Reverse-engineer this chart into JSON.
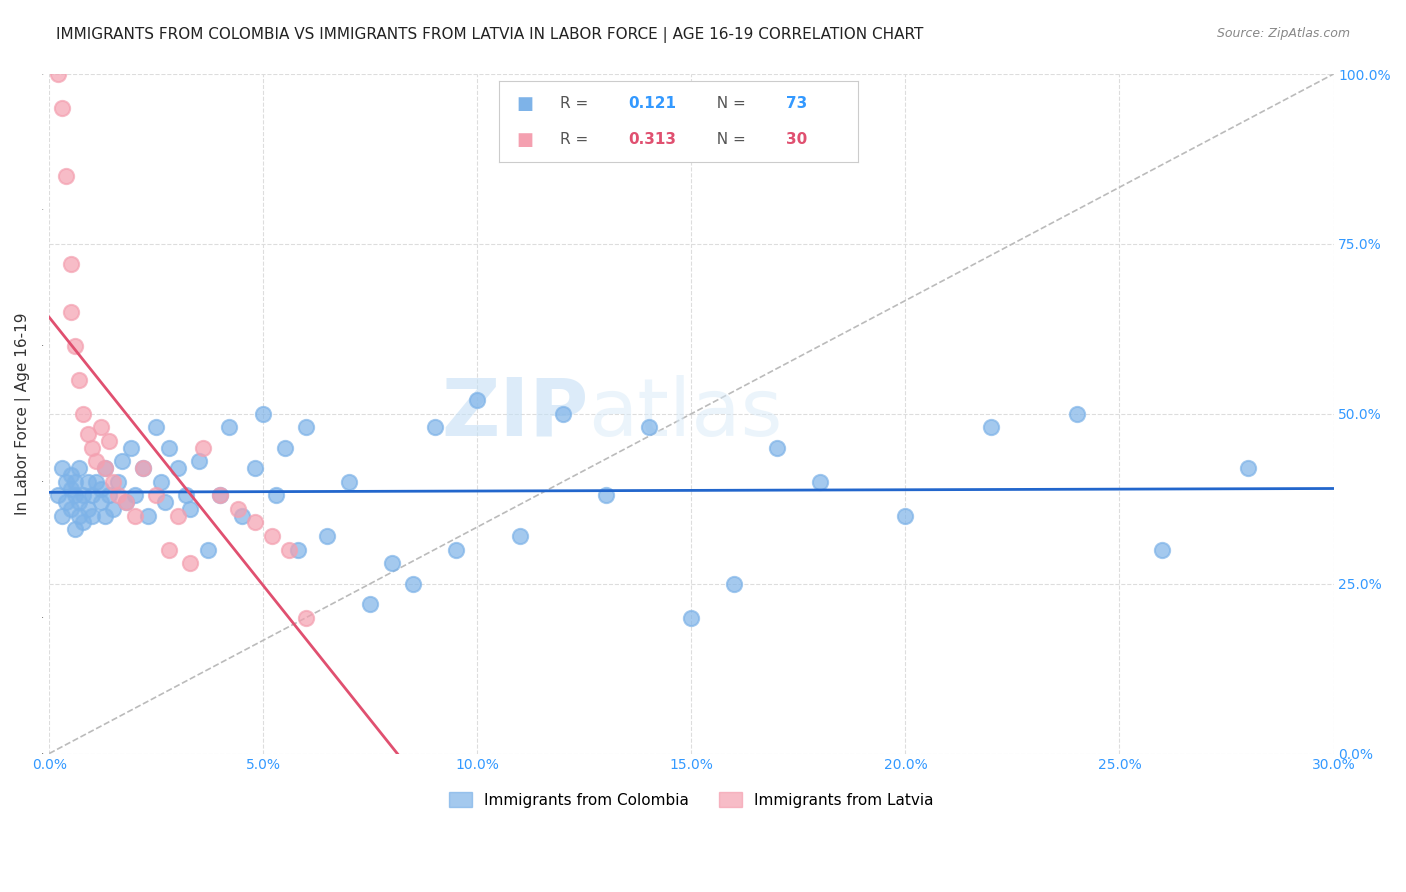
{
  "title": "IMMIGRANTS FROM COLOMBIA VS IMMIGRANTS FROM LATVIA IN LABOR FORCE | AGE 16-19 CORRELATION CHART",
  "source": "Source: ZipAtlas.com",
  "ylabel": "In Labor Force | Age 16-19",
  "xlim": [
    0.0,
    0.3
  ],
  "ylim": [
    0.0,
    1.0
  ],
  "xticks": [
    0.0,
    0.05,
    0.1,
    0.15,
    0.2,
    0.25,
    0.3
  ],
  "xticklabels": [
    "0.0%",
    "5.0%",
    "10.0%",
    "15.0%",
    "20.0%",
    "25.0%",
    "30.0%"
  ],
  "yticks_right": [
    0.0,
    0.25,
    0.5,
    0.75,
    1.0
  ],
  "yticklabels_right": [
    "0.0%",
    "25.0%",
    "50.0%",
    "75.0%",
    "100.0%"
  ],
  "colombia_color": "#7EB3E8",
  "latvia_color": "#F4A0B0",
  "colombia_line_color": "#2266CC",
  "latvia_line_color": "#E05070",
  "diag_line_color": "#BBBBBB",
  "colombia_R": 0.121,
  "colombia_N": 73,
  "latvia_R": 0.313,
  "latvia_N": 30,
  "colombia_scatter_x": [
    0.002,
    0.003,
    0.003,
    0.004,
    0.004,
    0.005,
    0.005,
    0.005,
    0.006,
    0.006,
    0.006,
    0.007,
    0.007,
    0.007,
    0.008,
    0.008,
    0.009,
    0.009,
    0.01,
    0.01,
    0.011,
    0.012,
    0.012,
    0.013,
    0.013,
    0.014,
    0.015,
    0.016,
    0.017,
    0.018,
    0.019,
    0.02,
    0.022,
    0.023,
    0.025,
    0.026,
    0.027,
    0.028,
    0.03,
    0.032,
    0.033,
    0.035,
    0.037,
    0.04,
    0.042,
    0.045,
    0.048,
    0.05,
    0.053,
    0.055,
    0.058,
    0.06,
    0.065,
    0.07,
    0.075,
    0.08,
    0.085,
    0.09,
    0.095,
    0.1,
    0.11,
    0.12,
    0.13,
    0.14,
    0.15,
    0.16,
    0.17,
    0.18,
    0.2,
    0.22,
    0.24,
    0.26,
    0.28
  ],
  "colombia_scatter_y": [
    0.38,
    0.35,
    0.42,
    0.4,
    0.37,
    0.36,
    0.39,
    0.41,
    0.33,
    0.38,
    0.4,
    0.35,
    0.37,
    0.42,
    0.34,
    0.38,
    0.36,
    0.4,
    0.35,
    0.38,
    0.4,
    0.37,
    0.39,
    0.35,
    0.42,
    0.38,
    0.36,
    0.4,
    0.43,
    0.37,
    0.45,
    0.38,
    0.42,
    0.35,
    0.48,
    0.4,
    0.37,
    0.45,
    0.42,
    0.38,
    0.36,
    0.43,
    0.3,
    0.38,
    0.48,
    0.35,
    0.42,
    0.5,
    0.38,
    0.45,
    0.3,
    0.48,
    0.32,
    0.4,
    0.22,
    0.28,
    0.25,
    0.48,
    0.3,
    0.52,
    0.32,
    0.5,
    0.38,
    0.48,
    0.2,
    0.25,
    0.45,
    0.4,
    0.35,
    0.48,
    0.5,
    0.3,
    0.42
  ],
  "latvia_scatter_x": [
    0.002,
    0.003,
    0.004,
    0.005,
    0.005,
    0.006,
    0.007,
    0.008,
    0.009,
    0.01,
    0.011,
    0.012,
    0.013,
    0.014,
    0.015,
    0.016,
    0.018,
    0.02,
    0.022,
    0.025,
    0.028,
    0.03,
    0.033,
    0.036,
    0.04,
    0.044,
    0.048,
    0.052,
    0.056,
    0.06
  ],
  "latvia_scatter_y": [
    1.0,
    0.95,
    0.85,
    0.72,
    0.65,
    0.6,
    0.55,
    0.5,
    0.47,
    0.45,
    0.43,
    0.48,
    0.42,
    0.46,
    0.4,
    0.38,
    0.37,
    0.35,
    0.42,
    0.38,
    0.3,
    0.35,
    0.28,
    0.45,
    0.38,
    0.36,
    0.34,
    0.32,
    0.3,
    0.2
  ],
  "watermark_zip": "ZIP",
  "watermark_atlas": "atlas",
  "background_color": "#FFFFFF",
  "grid_color": "#DDDDDD",
  "title_fontsize": 11,
  "axis_label_fontsize": 11,
  "tick_fontsize": 10,
  "legend_fontsize": 11
}
